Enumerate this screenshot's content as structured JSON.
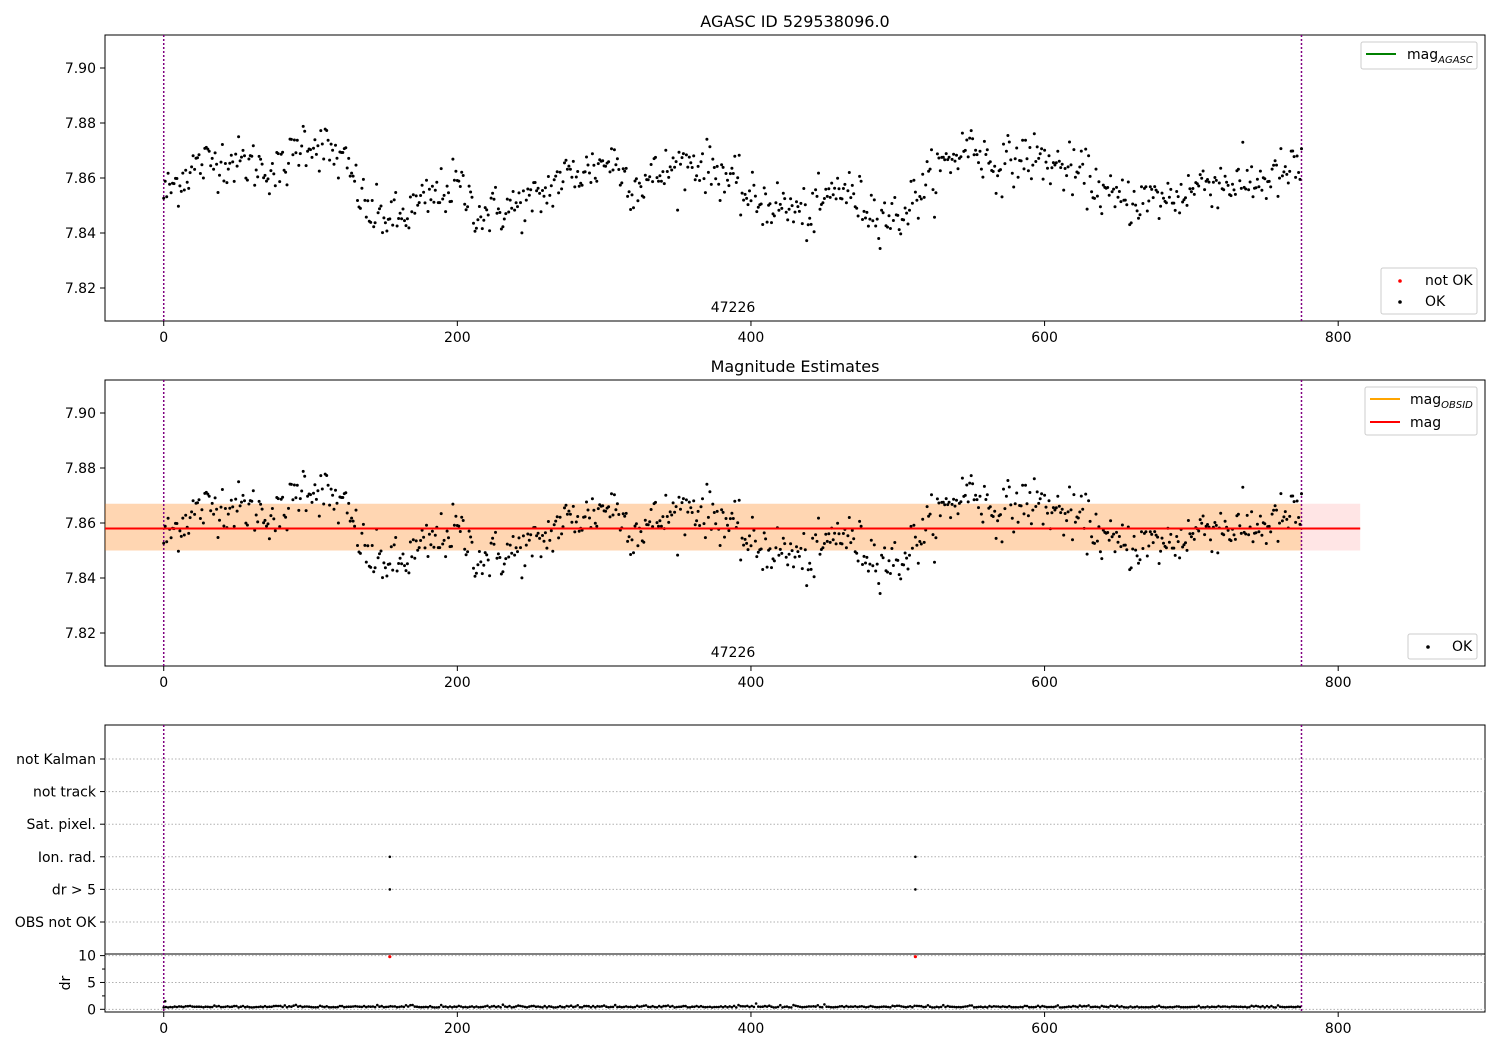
{
  "chart_data": [
    {
      "type": "scatter",
      "title": "AGASC ID 529538096.0",
      "annotation": "47226",
      "xlim": [
        -40,
        900
      ],
      "ylim": [
        7.808,
        7.912
      ],
      "xticks": [
        0,
        200,
        400,
        600,
        800
      ],
      "yticks": [
        7.82,
        7.84,
        7.86,
        7.88,
        7.9
      ],
      "vlines": [
        0,
        775
      ],
      "legend_upper": [
        "mag_AGASC"
      ],
      "legend_lower": [
        "not OK",
        "OK"
      ],
      "colors": {
        "agasc": "#008000",
        "ok": "#000000",
        "not_ok": "#ff0000",
        "vline": "#800080"
      },
      "legend_upper_loc": "upper right",
      "legend_lower_loc": "lower right",
      "series": {
        "name": "OK",
        "x_range": [
          0,
          775
        ],
        "mean": 7.858,
        "note_values": "approx 7.836-7.881"
      }
    },
    {
      "type": "scatter",
      "title": "Magnitude Estimates",
      "annotation": "47226",
      "xlim": [
        -40,
        900
      ],
      "ylim": [
        7.808,
        7.912
      ],
      "xticks": [
        0,
        200,
        400,
        600,
        800
      ],
      "yticks": [
        7.82,
        7.84,
        7.86,
        7.88,
        7.9
      ],
      "vlines": [
        0,
        775
      ],
      "mag_line": 7.858,
      "band_obsid": [
        7.85,
        7.867
      ],
      "band_obsid_x": [
        -40,
        775
      ],
      "band_mag": [
        7.85,
        7.867
      ],
      "band_mag_x": [
        -40,
        815
      ],
      "legend_upper": [
        "mag_OBSID",
        "mag"
      ],
      "legend_lower": [
        "OK"
      ],
      "colors": {
        "obsid": "#ffa500",
        "mag": "#ff0000",
        "ok": "#000000",
        "vline": "#800080"
      },
      "legend_upper_loc": "upper right",
      "legend_lower_loc": "lower right"
    },
    {
      "type": "scatter",
      "title": "",
      "xlim": [
        -40,
        900
      ],
      "xticks": [
        0,
        200,
        400,
        600,
        800
      ],
      "flag_labels": [
        "not Kalman",
        "not track",
        "Sat. pixel.",
        "Ion. rad.",
        "dr > 5",
        "OBS not OK"
      ],
      "flag_points": [
        {
          "flag": "Ion. rad.",
          "x": 154
        },
        {
          "flag": "dr > 5",
          "x": 154
        },
        {
          "flag": "Ion. rad.",
          "x": 512
        },
        {
          "flag": "dr > 5",
          "x": 512
        }
      ],
      "dr": {
        "ylabel": "dr",
        "yticks": [
          0,
          5,
          10
        ],
        "ylim": [
          -0.5,
          10.3
        ],
        "typical": 0.35,
        "outliers": [
          {
            "x": 154,
            "y": 9.8
          },
          {
            "x": 512,
            "y": 9.8
          }
        ]
      },
      "vlines": [
        0,
        775
      ]
    }
  ],
  "text": {
    "legend_agasc_main": "mag",
    "legend_agasc_sub": "AGASC",
    "legend_obsid_main": "mag",
    "legend_obsid_sub": "OBSID",
    "legend_mag": "mag",
    "legend_not_ok": "not OK",
    "legend_ok": "OK"
  }
}
